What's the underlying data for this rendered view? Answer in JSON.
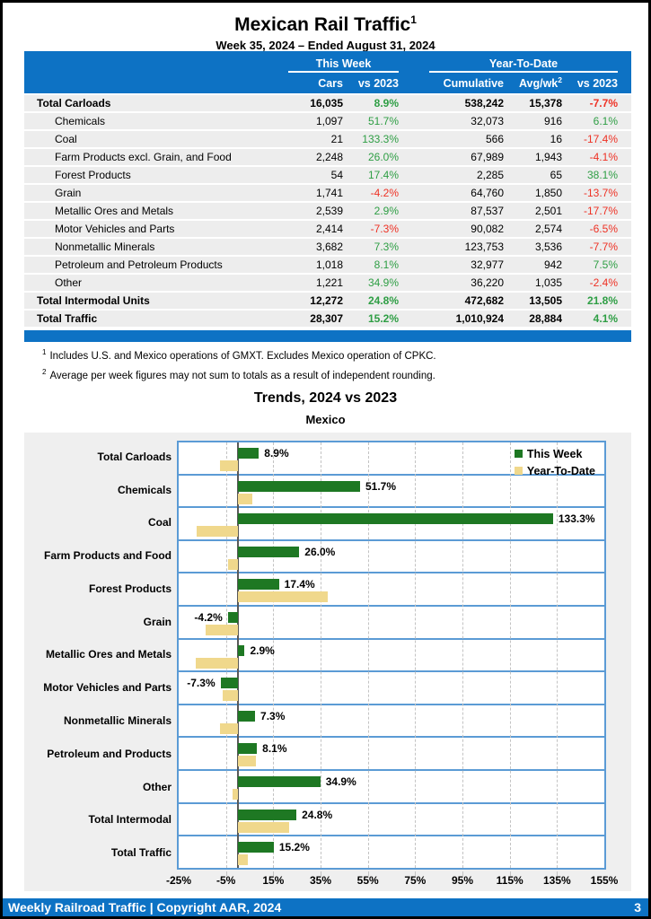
{
  "colors": {
    "header_blue": "#0d72c4",
    "frame_blue": "#5b9bd5",
    "row_gray": "#ededed",
    "panel_gray": "#efefef",
    "bar_green": "#1e7823",
    "bar_tan": "#f0d88c",
    "positive_green": "#2e9e44",
    "negative_red": "#ee3124"
  },
  "page": {
    "title": "Mexican Rail Traffic",
    "title_sup": "1",
    "subtitle": "Week 35, 2024 – Ended August 31, 2024"
  },
  "table": {
    "group_headers": {
      "this_week": "This Week",
      "year_to_date": "Year-To-Date"
    },
    "columns": {
      "cars": "Cars",
      "cars_vs": "vs 2023",
      "cumulative": "Cumulative",
      "avg_wk": "Avg/wk",
      "avg_wk_sup": "2",
      "ytd_vs": "vs 2023"
    },
    "rows": [
      {
        "label": "Total Carloads",
        "style": "total",
        "cars": "16,035",
        "cars_vs": "8.9%",
        "cumulative": "538,242",
        "avg_wk": "15,378",
        "ytd_vs": "-7.7%"
      },
      {
        "label": "Chemicals",
        "style": "category",
        "cars": "1,097",
        "cars_vs": "51.7%",
        "cumulative": "32,073",
        "avg_wk": "916",
        "ytd_vs": "6.1%"
      },
      {
        "label": "Coal",
        "style": "category",
        "cars": "21",
        "cars_vs": "133.3%",
        "cumulative": "566",
        "avg_wk": "16",
        "ytd_vs": "-17.4%"
      },
      {
        "label": "Farm Products excl. Grain, and Food",
        "style": "category",
        "cars": "2,248",
        "cars_vs": "26.0%",
        "cumulative": "67,989",
        "avg_wk": "1,943",
        "ytd_vs": "-4.1%"
      },
      {
        "label": "Forest Products",
        "style": "category",
        "cars": "54",
        "cars_vs": "17.4%",
        "cumulative": "2,285",
        "avg_wk": "65",
        "ytd_vs": "38.1%"
      },
      {
        "label": "Grain",
        "style": "category",
        "cars": "1,741",
        "cars_vs": "-4.2%",
        "cumulative": "64,760",
        "avg_wk": "1,850",
        "ytd_vs": "-13.7%"
      },
      {
        "label": "Metallic Ores and Metals",
        "style": "category",
        "cars": "2,539",
        "cars_vs": "2.9%",
        "cumulative": "87,537",
        "avg_wk": "2,501",
        "ytd_vs": "-17.7%"
      },
      {
        "label": "Motor Vehicles and Parts",
        "style": "category",
        "cars": "2,414",
        "cars_vs": "-7.3%",
        "cumulative": "90,082",
        "avg_wk": "2,574",
        "ytd_vs": "-6.5%"
      },
      {
        "label": "Nonmetallic Minerals",
        "style": "category",
        "cars": "3,682",
        "cars_vs": "7.3%",
        "cumulative": "123,753",
        "avg_wk": "3,536",
        "ytd_vs": "-7.7%"
      },
      {
        "label": "Petroleum and Petroleum Products",
        "style": "category",
        "cars": "1,018",
        "cars_vs": "8.1%",
        "cumulative": "32,977",
        "avg_wk": "942",
        "ytd_vs": "7.5%"
      },
      {
        "label": "Other",
        "style": "category",
        "cars": "1,221",
        "cars_vs": "34.9%",
        "cumulative": "36,220",
        "avg_wk": "1,035",
        "ytd_vs": "-2.4%"
      },
      {
        "label": "Total Intermodal Units",
        "style": "total",
        "cars": "12,272",
        "cars_vs": "24.8%",
        "cumulative": "472,682",
        "avg_wk": "13,505",
        "ytd_vs": "21.8%"
      },
      {
        "label": "Total Traffic",
        "style": "total",
        "cars": "28,307",
        "cars_vs": "15.2%",
        "cumulative": "1,010,924",
        "avg_wk": "28,884",
        "ytd_vs": "4.1%"
      }
    ]
  },
  "footnotes": [
    {
      "sup": "1",
      "text": "Includes U.S. and Mexico operations of GMXT. Excludes Mexico operation of CPKC."
    },
    {
      "sup": "2",
      "text": "Average per week figures may not sum to totals as a result of independent rounding."
    }
  ],
  "chart": {
    "title": "Trends, 2024 vs 2023",
    "subtitle": "Mexico",
    "legend": [
      {
        "label": "This Week",
        "color_key": "bar_green"
      },
      {
        "label": "Year-To-Date",
        "color_key": "bar_tan"
      }
    ]
  },
  "chart_data": {
    "type": "bar",
    "orientation": "horizontal",
    "title": "Trends, 2024 vs 2023",
    "subtitle": "Mexico",
    "categories": [
      "Total Carloads",
      "Chemicals",
      "Coal",
      "Farm Products and Food",
      "Forest Products",
      "Grain",
      "Metallic Ores and Metals",
      "Motor Vehicles and Parts",
      "Nonmetallic Minerals",
      "Petroleum and Products",
      "Other",
      "Total Intermodal",
      "Total Traffic"
    ],
    "series": [
      {
        "name": "This Week",
        "values": [
          8.9,
          51.7,
          133.3,
          26.0,
          17.4,
          -4.2,
          2.9,
          -7.3,
          7.3,
          8.1,
          34.9,
          24.8,
          15.2
        ],
        "labels": [
          "8.9%",
          "51.7%",
          "133.3%",
          "26.0%",
          "17.4%",
          "-4.2%",
          "2.9%",
          "-7.3%",
          "7.3%",
          "8.1%",
          "34.9%",
          "24.8%",
          "15.2%"
        ]
      },
      {
        "name": "Year-To-Date",
        "values": [
          -7.7,
          6.1,
          -17.4,
          -4.1,
          38.1,
          -13.7,
          -17.7,
          -6.5,
          -7.7,
          7.5,
          -2.4,
          21.8,
          4.1
        ]
      }
    ],
    "xlim": [
      -25,
      155
    ],
    "xticks": [
      -25,
      -5,
      15,
      35,
      55,
      75,
      95,
      115,
      135,
      155
    ],
    "xtick_labels": [
      "-25%",
      "-5%",
      "15%",
      "35%",
      "55%",
      "75%",
      "95%",
      "115%",
      "135%",
      "155%"
    ],
    "gridlines_at": [
      -5,
      15,
      35,
      55,
      75,
      95,
      115,
      135
    ],
    "grid": "dashed-vertical",
    "legend_position": "top-right"
  },
  "footer": {
    "text": "Weekly Railroad Traffic | Copyright AAR, 2024",
    "page_number": "3"
  }
}
